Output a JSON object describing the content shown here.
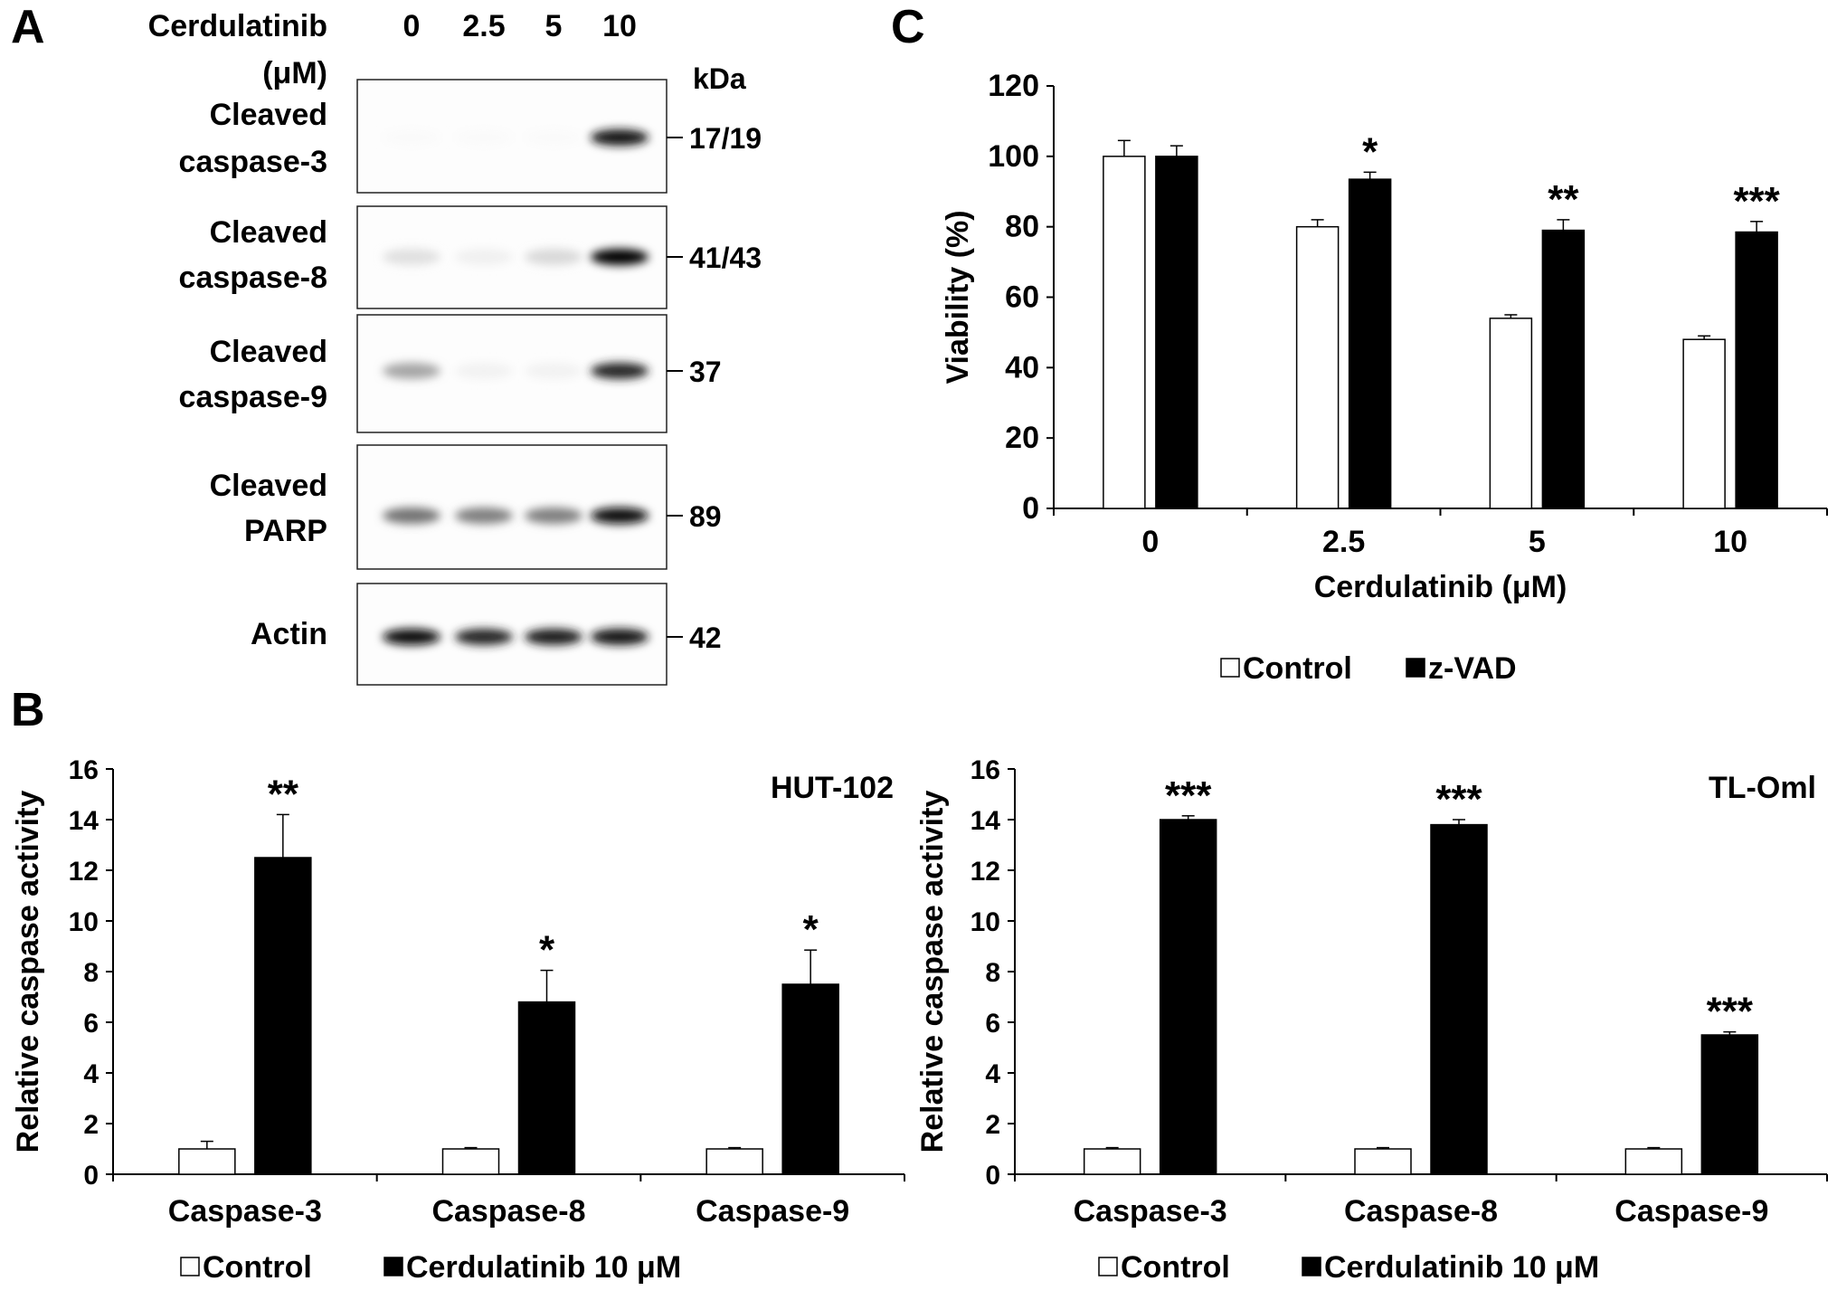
{
  "panels": {
    "a": "A",
    "b": "B",
    "c": "C"
  },
  "blot": {
    "drug_label": "Cerdulatinib",
    "unit_label": "(μM)",
    "concentrations": [
      "0",
      "2.5",
      "5",
      "10"
    ],
    "kda_label": "kDa",
    "rows": [
      {
        "label_lines": [
          "Cleaved",
          "caspase-3"
        ],
        "kda": "17/19",
        "intensities": [
          0.02,
          0.02,
          0.02,
          0.9
        ]
      },
      {
        "label_lines": [
          "Cleaved",
          "caspase-8"
        ],
        "kda": "41/43",
        "intensities": [
          0.12,
          0.06,
          0.15,
          1.0
        ]
      },
      {
        "label_lines": [
          "Cleaved",
          "caspase-9"
        ],
        "kda": "37",
        "intensities": [
          0.35,
          0.05,
          0.05,
          0.85
        ]
      },
      {
        "label_lines": [
          "Cleaved",
          "PARP"
        ],
        "kda": "89",
        "intensities": [
          0.55,
          0.5,
          0.5,
          0.95
        ]
      },
      {
        "label_lines": [
          "Actin"
        ],
        "kda": "42",
        "intensities": [
          0.95,
          0.85,
          0.88,
          0.92
        ]
      }
    ]
  },
  "chart_data": [
    {
      "id": "C",
      "type": "bar",
      "categories": [
        "0",
        "2.5",
        "5",
        "10"
      ],
      "series": [
        {
          "name": "Control",
          "values": [
            100,
            80,
            54,
            48
          ],
          "errors": [
            4.5,
            2,
            1,
            1
          ],
          "color": "#ffffff"
        },
        {
          "name": "z-VAD",
          "values": [
            100,
            93.5,
            79,
            78.5
          ],
          "errors": [
            3,
            2,
            3,
            3
          ],
          "color": "#000000"
        }
      ],
      "significance": [
        "",
        "*",
        "**",
        "***"
      ],
      "title": "",
      "xlabel": "Cerdulatinib (μM)",
      "ylabel": "Viability (%)",
      "ylim": [
        0,
        120
      ],
      "yticks": [
        0,
        20,
        40,
        60,
        80,
        100,
        120
      ],
      "legend": "bottom"
    },
    {
      "id": "B-left",
      "type": "bar",
      "categories": [
        "Caspase-3",
        "Caspase-8",
        "Caspase-9"
      ],
      "series": [
        {
          "name": "Control",
          "values": [
            1,
            1,
            1
          ],
          "errors": [
            0.3,
            0.05,
            0.05
          ],
          "color": "#ffffff"
        },
        {
          "name": "Cerdulatinib 10 μM",
          "values": [
            12.5,
            6.8,
            7.5
          ],
          "errors": [
            1.7,
            1.25,
            1.35
          ],
          "color": "#000000"
        }
      ],
      "significance": [
        "**",
        "*",
        "*"
      ],
      "annotation": "HUT-102",
      "title": "",
      "xlabel": "",
      "ylabel": "Relative caspase activity",
      "ylim": [
        0,
        16
      ],
      "yticks": [
        0,
        2,
        4,
        6,
        8,
        10,
        12,
        14,
        16
      ],
      "legend": "bottom"
    },
    {
      "id": "B-right",
      "type": "bar",
      "categories": [
        "Caspase-3",
        "Caspase-8",
        "Caspase-9"
      ],
      "series": [
        {
          "name": "Control",
          "values": [
            1,
            1,
            1
          ],
          "errors": [
            0.05,
            0.05,
            0.05
          ],
          "color": "#ffffff"
        },
        {
          "name": "Cerdulatinib 10 μM",
          "values": [
            14.0,
            13.8,
            5.5
          ],
          "errors": [
            0.15,
            0.2,
            0.12
          ],
          "color": "#000000"
        }
      ],
      "significance": [
        "***",
        "***",
        "***"
      ],
      "annotation": "TL-Oml",
      "title": "",
      "xlabel": "",
      "ylabel": "Relative caspase activity",
      "ylim": [
        0,
        16
      ],
      "yticks": [
        0,
        2,
        4,
        6,
        8,
        10,
        12,
        14,
        16
      ],
      "legend": "bottom"
    }
  ]
}
